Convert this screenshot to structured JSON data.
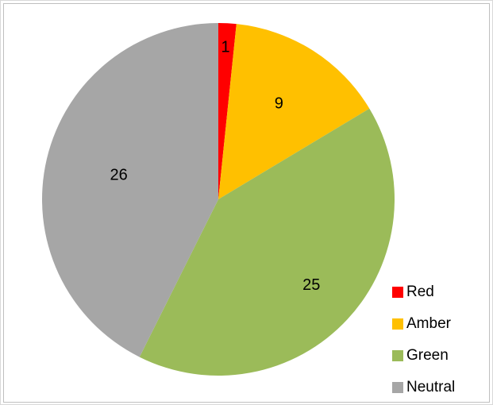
{
  "chart_data": {
    "type": "pie",
    "categories": [
      "Red",
      "Amber",
      "Green",
      "Neutral"
    ],
    "values": [
      1,
      9,
      25,
      26
    ],
    "labels": [
      "1",
      "9",
      "25",
      "26"
    ],
    "colors": [
      "#ff0000",
      "#ffc000",
      "#9bbb59",
      "#a6a6a6"
    ],
    "legend_position": "right",
    "start_angle": "12 o'clock",
    "direction": "clockwise",
    "title": ""
  }
}
